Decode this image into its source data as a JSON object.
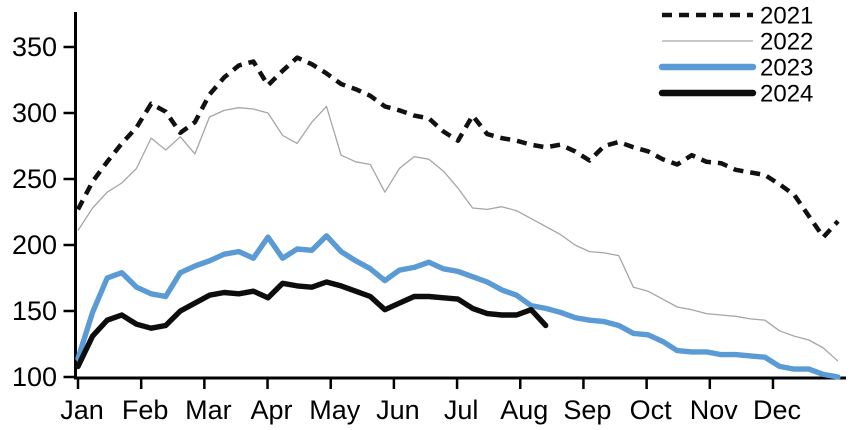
{
  "chart_data": {
    "type": "line",
    "title": "",
    "xlabel": "",
    "ylabel": "",
    "x_axis": {
      "categories": [
        "Jan",
        "Feb",
        "Mar",
        "Apr",
        "May",
        "Jun",
        "Jul",
        "Aug",
        "Sep",
        "Oct",
        "Nov",
        "Dec"
      ],
      "resolution": "weekly"
    },
    "ylim": [
      100,
      350
    ],
    "y_ticks": [
      "100",
      "150",
      "200",
      "250",
      "300",
      "350"
    ],
    "grid": "off",
    "legend_position": "top-right",
    "series": [
      {
        "name": "2021",
        "color": "#111111",
        "line_style": "dashed-thick",
        "values": [
          227,
          248,
          263,
          277,
          289,
          307,
          301,
          285,
          293,
          314,
          327,
          336,
          339,
          321,
          332,
          342,
          337,
          330,
          322,
          318,
          313,
          305,
          302,
          298,
          296,
          286,
          279,
          298,
          284,
          281,
          279,
          276,
          274,
          276,
          271,
          264,
          275,
          278,
          274,
          271,
          265,
          261,
          268,
          263,
          262,
          257,
          255,
          253,
          246,
          238,
          222,
          206,
          218
        ]
      },
      {
        "name": "2022",
        "color": "#a6a6a6",
        "line_style": "thin",
        "values": [
          211,
          228,
          240,
          247,
          258,
          281,
          272,
          282,
          269,
          297,
          302,
          304,
          303,
          300,
          283,
          277,
          293,
          305,
          268,
          263,
          261,
          240,
          258,
          267,
          265,
          256,
          243,
          228,
          227,
          229,
          226,
          220,
          214,
          208,
          200,
          195,
          194,
          192,
          168,
          165,
          159,
          153,
          151,
          148,
          147,
          146,
          144,
          143,
          135,
          131,
          128,
          122,
          112
        ]
      },
      {
        "name": "2023",
        "color": "#5b9bd5",
        "line_style": "thick",
        "values": [
          114,
          149,
          175,
          179,
          168,
          163,
          161,
          179,
          184,
          188,
          193,
          195,
          190,
          206,
          190,
          197,
          196,
          207,
          195,
          188,
          182,
          173,
          181,
          183,
          187,
          182,
          180,
          176,
          172,
          166,
          162,
          154,
          152,
          149,
          145,
          143,
          142,
          139,
          133,
          132,
          127,
          120,
          119,
          119,
          117,
          117,
          116,
          115,
          108,
          106,
          106,
          102,
          100
        ]
      },
      {
        "name": "2024",
        "color": "#0d0d0d",
        "line_style": "thick",
        "values": [
          108,
          131,
          143,
          147,
          140,
          137,
          139,
          150,
          156,
          162,
          164,
          163,
          165,
          160,
          171,
          169,
          168,
          172,
          169,
          165,
          161,
          151,
          156,
          161,
          161,
          160,
          159,
          152,
          148,
          147,
          147,
          151,
          139
        ]
      }
    ]
  }
}
